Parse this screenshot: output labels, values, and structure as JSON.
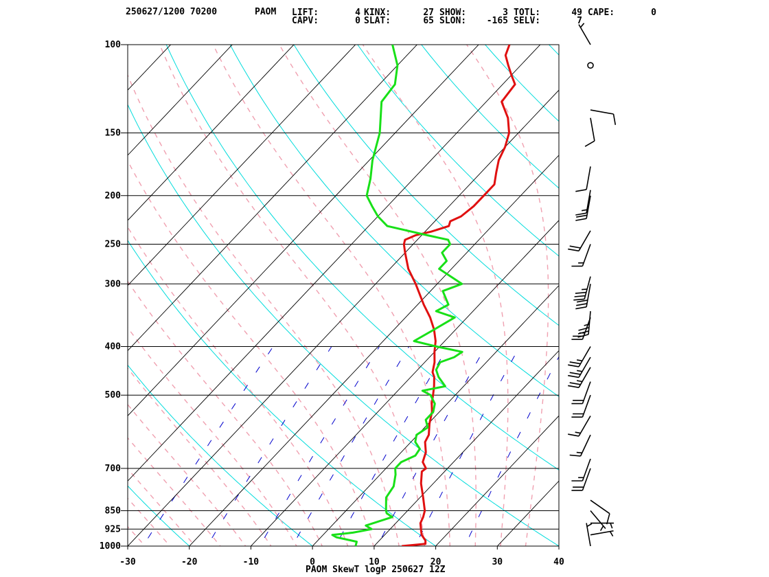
{
  "header": {
    "line1": "250627/1200 70200",
    "station": "PAOM",
    "indices": [
      {
        "label": "LIFT:",
        "value": "4"
      },
      {
        "label": "KINX:",
        "value": "27"
      },
      {
        "label": "SHOW:",
        "value": "3"
      },
      {
        "label": "TOTL:",
        "value": "49"
      },
      {
        "label": "CAPE:",
        "value": "0"
      },
      {
        "label": "CAPV:",
        "value": "0"
      },
      {
        "label": "SLAT:",
        "value": "65"
      },
      {
        "label": "SLON:",
        "value": "-165"
      },
      {
        "label": "SELV:",
        "value": "7"
      }
    ]
  },
  "footer": {
    "caption": "PAOM SkewT logP 250627 12Z"
  },
  "chart_data": {
    "type": "line",
    "title": "PAOM SkewT logP 250627 12Z",
    "y_scale": "log-pressure",
    "ylim": [
      1000,
      100
    ],
    "xlim": [
      -30,
      40
    ],
    "y_ticks": [
      100,
      150,
      200,
      250,
      300,
      400,
      500,
      700,
      850,
      925,
      1000
    ],
    "x_ticks": [
      -30,
      -20,
      -10,
      0,
      10,
      20,
      30,
      40
    ],
    "colors": {
      "temperature": "#e01010",
      "dewpoint": "#18e018",
      "isotherm": "#000000",
      "dry_adiabat": "#00dcdc",
      "moist_adiabat": "#f0a0b0",
      "mixing_ratio": "#0000cc",
      "wind_barb": "#000000"
    },
    "series": [
      {
        "points": [
          [
            1000,
            14.5
          ],
          [
            990,
            18
          ],
          [
            975,
            17.5
          ],
          [
            950,
            16
          ],
          [
            925,
            15
          ],
          [
            900,
            14
          ],
          [
            875,
            13.5
          ],
          [
            850,
            12.8
          ],
          [
            800,
            10.5
          ],
          [
            750,
            8
          ],
          [
            710,
            6.3
          ],
          [
            700,
            6.5
          ],
          [
            680,
            5
          ],
          [
            650,
            4
          ],
          [
            620,
            2.3
          ],
          [
            600,
            1.8
          ],
          [
            570,
            0.2
          ],
          [
            540,
            -1.2
          ],
          [
            520,
            -2.5
          ],
          [
            500,
            -3.6
          ],
          [
            480,
            -4.8
          ],
          [
            460,
            -6.2
          ],
          [
            450,
            -7.2
          ],
          [
            430,
            -8.4
          ],
          [
            410,
            -10
          ],
          [
            390,
            -11.5
          ],
          [
            370,
            -13.5
          ],
          [
            350,
            -16
          ],
          [
            330,
            -19
          ],
          [
            300,
            -23.5
          ],
          [
            280,
            -27
          ],
          [
            260,
            -30
          ],
          [
            250,
            -31.5
          ],
          [
            245,
            -32
          ],
          [
            240,
            -31
          ],
          [
            236,
            -29
          ],
          [
            230,
            -27
          ],
          [
            225,
            -27.5
          ],
          [
            220,
            -26.5
          ],
          [
            210,
            -26
          ],
          [
            200,
            -26
          ],
          [
            190,
            -26
          ],
          [
            180,
            -27.5
          ],
          [
            170,
            -29
          ],
          [
            160,
            -30
          ],
          [
            150,
            -31.5
          ],
          [
            140,
            -34
          ],
          [
            130,
            -37.5
          ],
          [
            120,
            -38
          ],
          [
            115,
            -40
          ],
          [
            110,
            -42
          ],
          [
            105,
            -44
          ],
          [
            100,
            -45
          ]
        ]
      },
      {
        "points": [
          [
            1000,
            7
          ],
          [
            980,
            6.5
          ],
          [
            960,
            2.5
          ],
          [
            950,
            1.5
          ],
          [
            940,
            4.5
          ],
          [
            925,
            7
          ],
          [
            910,
            5.5
          ],
          [
            890,
            7.2
          ],
          [
            875,
            8.5
          ],
          [
            860,
            7
          ],
          [
            850,
            6.5
          ],
          [
            800,
            4.5
          ],
          [
            760,
            4
          ],
          [
            720,
            2.5
          ],
          [
            700,
            1.5
          ],
          [
            680,
            1.5
          ],
          [
            660,
            2.8
          ],
          [
            640,
            2.5
          ],
          [
            620,
            0.7
          ],
          [
            600,
            -0.2
          ],
          [
            580,
            0.5
          ],
          [
            560,
            -1
          ],
          [
            540,
            -1
          ],
          [
            520,
            -2
          ],
          [
            500,
            -4
          ],
          [
            490,
            -6
          ],
          [
            480,
            -3
          ],
          [
            460,
            -5.5
          ],
          [
            445,
            -7
          ],
          [
            430,
            -7.5
          ],
          [
            420,
            -6
          ],
          [
            410,
            -5.5
          ],
          [
            400,
            -10.5
          ],
          [
            390,
            -15
          ],
          [
            370,
            -13.5
          ],
          [
            350,
            -12
          ],
          [
            340,
            -16
          ],
          [
            330,
            -15
          ],
          [
            310,
            -18
          ],
          [
            300,
            -16
          ],
          [
            280,
            -22
          ],
          [
            270,
            -22
          ],
          [
            260,
            -24
          ],
          [
            250,
            -24
          ],
          [
            245,
            -25
          ],
          [
            240,
            -29
          ],
          [
            230,
            -37
          ],
          [
            220,
            -40
          ],
          [
            210,
            -42.5
          ],
          [
            200,
            -45
          ],
          [
            185,
            -47
          ],
          [
            170,
            -49.5
          ],
          [
            150,
            -52.5
          ],
          [
            130,
            -57
          ],
          [
            120,
            -57.5
          ],
          [
            110,
            -60
          ],
          [
            100,
            -64
          ]
        ]
      }
    ],
    "wind_barbs": [
      {
        "p": 1000,
        "dir": 350,
        "spd": 5
      },
      {
        "p": 950,
        "dir": 80,
        "spd": 5
      },
      {
        "p": 900,
        "dir": 90,
        "spd": 5
      },
      {
        "p": 850,
        "dir": 140,
        "spd": 5
      },
      {
        "p": 810,
        "dir": 125,
        "spd": 10
      },
      {
        "p": 700,
        "dir": 200,
        "spd": 20
      },
      {
        "p": 670,
        "dir": 200,
        "spd": 15
      },
      {
        "p": 600,
        "dir": 205,
        "spd": 15
      },
      {
        "p": 550,
        "dir": 210,
        "spd": 15
      },
      {
        "p": 500,
        "dir": 200,
        "spd": 20
      },
      {
        "p": 470,
        "dir": 200,
        "spd": 20
      },
      {
        "p": 440,
        "dir": 210,
        "spd": 25
      },
      {
        "p": 420,
        "dir": 210,
        "spd": 25
      },
      {
        "p": 400,
        "dir": 210,
        "spd": 25
      },
      {
        "p": 350,
        "dir": 200,
        "spd": 25
      },
      {
        "p": 340,
        "dir": 185,
        "spd": 35
      },
      {
        "p": 300,
        "dir": 190,
        "spd": 30
      },
      {
        "p": 290,
        "dir": 195,
        "spd": 35
      },
      {
        "p": 250,
        "dir": 200,
        "spd": 15
      },
      {
        "p": 235,
        "dir": 210,
        "spd": 20
      },
      {
        "p": 200,
        "dir": 190,
        "spd": 20
      },
      {
        "p": 195,
        "dir": 190,
        "spd": 15
      },
      {
        "p": 175,
        "dir": 190,
        "spd": 10
      },
      {
        "p": 140,
        "dir": 170,
        "spd": 10
      },
      {
        "p": 135,
        "dir": 100,
        "spd": 10
      },
      {
        "p": 110,
        "dir": 0,
        "spd": 0
      },
      {
        "p": 100,
        "dir": 330,
        "spd": 5
      }
    ]
  }
}
